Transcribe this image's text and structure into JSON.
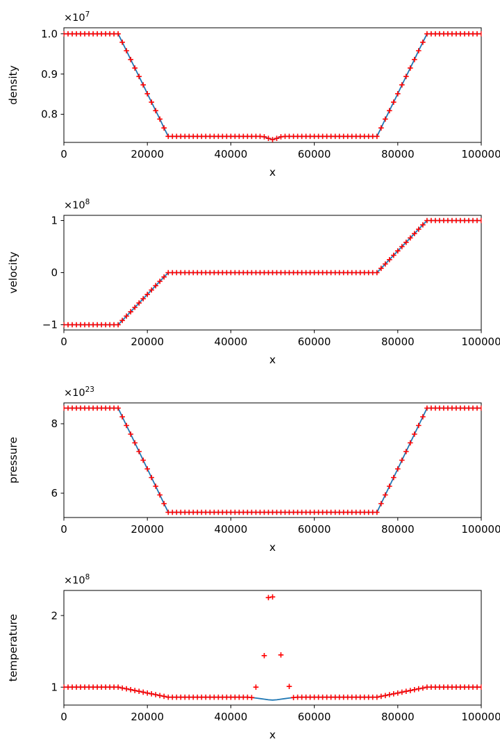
{
  "style": {
    "line_color": "#1f77b4",
    "marker_color": "#ff0000",
    "axis_color": "#000000",
    "background": "#ffffff",
    "marker_symbol": "+",
    "line_width": 1.8
  },
  "chart_common": {
    "xlabel": "x",
    "xlim": [
      0,
      100000
    ],
    "xticks": [
      0,
      20000,
      40000,
      60000,
      80000,
      100000
    ],
    "xtick_labels": [
      "0",
      "20000",
      "40000",
      "60000",
      "80000",
      "100000"
    ],
    "x": [
      0,
      1000,
      2000,
      3000,
      4000,
      5000,
      6000,
      7000,
      8000,
      9000,
      10000,
      11000,
      12000,
      13000,
      14000,
      15000,
      16000,
      17000,
      18000,
      19000,
      20000,
      21000,
      22000,
      23000,
      24000,
      25000,
      26000,
      27000,
      28000,
      29000,
      30000,
      31000,
      32000,
      33000,
      34000,
      35000,
      36000,
      37000,
      38000,
      39000,
      40000,
      41000,
      42000,
      43000,
      44000,
      45000,
      46000,
      47000,
      48000,
      49000,
      50000,
      51000,
      52000,
      53000,
      54000,
      55000,
      56000,
      57000,
      58000,
      59000,
      60000,
      61000,
      62000,
      63000,
      64000,
      65000,
      66000,
      67000,
      68000,
      69000,
      70000,
      71000,
      72000,
      73000,
      74000,
      75000,
      76000,
      77000,
      78000,
      79000,
      80000,
      81000,
      82000,
      83000,
      84000,
      85000,
      86000,
      87000,
      88000,
      89000,
      90000,
      91000,
      92000,
      93000,
      94000,
      95000,
      96000,
      97000,
      98000,
      99000,
      100000
    ]
  },
  "chart_data": [
    {
      "type": "line",
      "name": "density",
      "ylabel": "density",
      "offset_base": "×10",
      "offset_exponent": "7",
      "unit_multiplier": "1e7",
      "ylim": [
        0.73,
        1.015
      ],
      "yticks": [
        0.8,
        0.9,
        1.0
      ],
      "ytick_labels": [
        "0.8",
        "0.9",
        "1.0"
      ],
      "y": [
        1.0,
        1.0,
        1.0,
        1.0,
        1.0,
        1.0,
        1.0,
        1.0,
        1.0,
        1.0,
        1.0,
        1.0,
        1.0,
        1.0,
        0.979,
        0.958,
        0.936,
        0.915,
        0.894,
        0.873,
        0.851,
        0.83,
        0.809,
        0.788,
        0.766,
        0.745,
        0.745,
        0.745,
        0.745,
        0.745,
        0.745,
        0.745,
        0.745,
        0.745,
        0.745,
        0.745,
        0.745,
        0.745,
        0.745,
        0.745,
        0.745,
        0.745,
        0.745,
        0.745,
        0.745,
        0.745,
        0.745,
        0.745,
        0.744,
        0.74,
        0.737,
        0.74,
        0.744,
        0.745,
        0.745,
        0.745,
        0.745,
        0.745,
        0.745,
        0.745,
        0.745,
        0.745,
        0.745,
        0.745,
        0.745,
        0.745,
        0.745,
        0.745,
        0.745,
        0.745,
        0.745,
        0.745,
        0.745,
        0.745,
        0.745,
        0.745,
        0.766,
        0.788,
        0.809,
        0.83,
        0.851,
        0.873,
        0.894,
        0.915,
        0.936,
        0.958,
        0.979,
        1.0,
        1.0,
        1.0,
        1.0,
        1.0,
        1.0,
        1.0,
        1.0,
        1.0,
        1.0,
        1.0,
        1.0,
        1.0,
        1.0
      ]
    },
    {
      "type": "line",
      "name": "velocity",
      "ylabel": "velocity",
      "offset_base": "×10",
      "offset_exponent": "8",
      "unit_multiplier": "1e8",
      "ylim": [
        -1.1,
        1.1
      ],
      "yticks": [
        -1,
        0,
        1
      ],
      "ytick_labels": [
        "−1",
        "0",
        "1"
      ],
      "y": [
        -1.0,
        -1.0,
        -1.0,
        -1.0,
        -1.0,
        -1.0,
        -1.0,
        -1.0,
        -1.0,
        -1.0,
        -1.0,
        -1.0,
        -1.0,
        -1.0,
        -0.917,
        -0.833,
        -0.75,
        -0.667,
        -0.583,
        -0.5,
        -0.417,
        -0.333,
        -0.25,
        -0.167,
        -0.083,
        0.0,
        0.0,
        0.0,
        0.0,
        0.0,
        0.0,
        0.0,
        0.0,
        0.0,
        0.0,
        0.0,
        0.0,
        0.0,
        0.0,
        0.0,
        0.0,
        0.0,
        0.0,
        0.0,
        0.0,
        0.0,
        0.0,
        0.0,
        0.0,
        0.0,
        0.0,
        0.0,
        0.0,
        0.0,
        0.0,
        0.0,
        0.0,
        0.0,
        0.0,
        0.0,
        0.0,
        0.0,
        0.0,
        0.0,
        0.0,
        0.0,
        0.0,
        0.0,
        0.0,
        0.0,
        0.0,
        0.0,
        0.0,
        0.0,
        0.0,
        0.0,
        0.083,
        0.167,
        0.25,
        0.333,
        0.417,
        0.5,
        0.583,
        0.667,
        0.75,
        0.833,
        0.917,
        1.0,
        1.0,
        1.0,
        1.0,
        1.0,
        1.0,
        1.0,
        1.0,
        1.0,
        1.0,
        1.0,
        1.0,
        1.0,
        1.0
      ]
    },
    {
      "type": "line",
      "name": "pressure",
      "ylabel": "pressure",
      "offset_base": "×10",
      "offset_exponent": "23",
      "unit_multiplier": "1e23",
      "ylim": [
        5.3,
        8.6
      ],
      "yticks": [
        6,
        8
      ],
      "ytick_labels": [
        "6",
        "8"
      ],
      "y": [
        8.45,
        8.45,
        8.45,
        8.45,
        8.45,
        8.45,
        8.45,
        8.45,
        8.45,
        8.45,
        8.45,
        8.45,
        8.45,
        8.45,
        8.2,
        7.95,
        7.7,
        7.45,
        7.2,
        6.95,
        6.7,
        6.45,
        6.2,
        5.95,
        5.7,
        5.45,
        5.45,
        5.45,
        5.45,
        5.45,
        5.45,
        5.45,
        5.45,
        5.45,
        5.45,
        5.45,
        5.45,
        5.45,
        5.45,
        5.45,
        5.45,
        5.45,
        5.45,
        5.45,
        5.45,
        5.45,
        5.45,
        5.45,
        5.45,
        5.45,
        5.45,
        5.45,
        5.45,
        5.45,
        5.45,
        5.45,
        5.45,
        5.45,
        5.45,
        5.45,
        5.45,
        5.45,
        5.45,
        5.45,
        5.45,
        5.45,
        5.45,
        5.45,
        5.45,
        5.45,
        5.45,
        5.45,
        5.45,
        5.45,
        5.45,
        5.45,
        5.7,
        5.95,
        6.2,
        6.45,
        6.7,
        6.95,
        7.2,
        7.45,
        7.7,
        7.95,
        8.2,
        8.45,
        8.45,
        8.45,
        8.45,
        8.45,
        8.45,
        8.45,
        8.45,
        8.45,
        8.45,
        8.45,
        8.45,
        8.45,
        8.45
      ]
    },
    {
      "type": "line",
      "name": "temperature",
      "ylabel": "temperature",
      "offset_base": "×10",
      "offset_exponent": "8",
      "unit_multiplier": "1e8",
      "ylim": [
        0.75,
        2.35
      ],
      "yticks": [
        1,
        2
      ],
      "ytick_labels": [
        "1",
        "2"
      ],
      "y": [
        1.0,
        1.0,
        1.0,
        1.0,
        1.0,
        1.0,
        1.0,
        1.0,
        1.0,
        1.0,
        1.0,
        1.0,
        1.0,
        1.0,
        0.988,
        0.977,
        0.965,
        0.953,
        0.942,
        0.93,
        0.918,
        0.907,
        0.895,
        0.883,
        0.872,
        0.86,
        0.86,
        0.86,
        0.86,
        0.86,
        0.86,
        0.86,
        0.86,
        0.86,
        0.86,
        0.86,
        0.86,
        0.86,
        0.86,
        0.86,
        0.86,
        0.86,
        0.86,
        0.86,
        0.86,
        0.855,
        0.848,
        0.84,
        0.832,
        0.824,
        0.82,
        0.824,
        0.832,
        0.84,
        0.848,
        0.855,
        0.86,
        0.86,
        0.86,
        0.86,
        0.86,
        0.86,
        0.86,
        0.86,
        0.86,
        0.86,
        0.86,
        0.86,
        0.86,
        0.86,
        0.86,
        0.86,
        0.86,
        0.86,
        0.86,
        0.86,
        0.872,
        0.883,
        0.895,
        0.907,
        0.918,
        0.93,
        0.942,
        0.953,
        0.965,
        0.977,
        0.988,
        1.0,
        1.0,
        1.0,
        1.0,
        1.0,
        1.0,
        1.0,
        1.0,
        1.0,
        1.0,
        1.0,
        1.0,
        1.0,
        1.0
      ],
      "markers": {
        "x": [
          0,
          1000,
          2000,
          3000,
          4000,
          5000,
          6000,
          7000,
          8000,
          9000,
          10000,
          11000,
          12000,
          13000,
          14000,
          15000,
          16000,
          17000,
          18000,
          19000,
          20000,
          21000,
          22000,
          23000,
          24000,
          25000,
          26000,
          27000,
          28000,
          29000,
          30000,
          31000,
          32000,
          33000,
          34000,
          35000,
          36000,
          37000,
          38000,
          39000,
          40000,
          41000,
          42000,
          43000,
          44000,
          45000,
          46000,
          48000,
          49000,
          50000,
          52000,
          54000,
          55000,
          56000,
          57000,
          58000,
          59000,
          60000,
          61000,
          62000,
          63000,
          64000,
          65000,
          66000,
          67000,
          68000,
          69000,
          70000,
          71000,
          72000,
          73000,
          74000,
          75000,
          76000,
          77000,
          78000,
          79000,
          80000,
          81000,
          82000,
          83000,
          84000,
          85000,
          86000,
          87000,
          88000,
          89000,
          90000,
          91000,
          92000,
          93000,
          94000,
          95000,
          96000,
          97000,
          98000,
          99000,
          100000
        ],
        "y": [
          1.0,
          1.0,
          1.0,
          1.0,
          1.0,
          1.0,
          1.0,
          1.0,
          1.0,
          1.0,
          1.0,
          1.0,
          1.0,
          1.0,
          0.988,
          0.977,
          0.965,
          0.953,
          0.942,
          0.93,
          0.918,
          0.907,
          0.895,
          0.883,
          0.872,
          0.86,
          0.86,
          0.86,
          0.86,
          0.86,
          0.86,
          0.86,
          0.86,
          0.86,
          0.86,
          0.86,
          0.86,
          0.86,
          0.86,
          0.86,
          0.86,
          0.86,
          0.86,
          0.86,
          0.86,
          0.855,
          1.0,
          1.44,
          2.25,
          2.26,
          1.45,
          1.01,
          0.855,
          0.86,
          0.86,
          0.86,
          0.86,
          0.86,
          0.86,
          0.86,
          0.86,
          0.86,
          0.86,
          0.86,
          0.86,
          0.86,
          0.86,
          0.86,
          0.86,
          0.86,
          0.86,
          0.86,
          0.86,
          0.872,
          0.883,
          0.895,
          0.907,
          0.918,
          0.93,
          0.942,
          0.953,
          0.965,
          0.977,
          0.988,
          1.0,
          1.0,
          1.0,
          1.0,
          1.0,
          1.0,
          1.0,
          1.0,
          1.0,
          1.0,
          1.0,
          1.0,
          1.0,
          1.0
        ]
      }
    }
  ]
}
